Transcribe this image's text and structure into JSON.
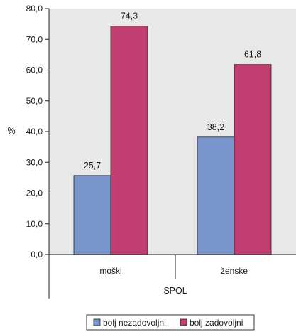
{
  "chart_data": {
    "type": "bar",
    "categories": [
      "moški",
      "ženske"
    ],
    "series": [
      {
        "name": "bolj nezadovoljni",
        "values": [
          25.7,
          38.2
        ],
        "color": "#7a96cc"
      },
      {
        "name": "bolj zadovoljni",
        "values": [
          74.3,
          61.8
        ],
        "color": "#c03f70"
      }
    ],
    "value_labels": [
      [
        "25,7",
        "38,2"
      ],
      [
        "74,3",
        "61,8"
      ]
    ],
    "ylabel": "%",
    "xlabel": "SPOL",
    "ylim": [
      0,
      80
    ],
    "yticks": [
      "0,0",
      "10,0",
      "20,0",
      "30,0",
      "40,0",
      "50,0",
      "60,0",
      "70,0",
      "80,0"
    ],
    "plot_background": "#e8e8e8",
    "legend_position": "bottom-center"
  }
}
